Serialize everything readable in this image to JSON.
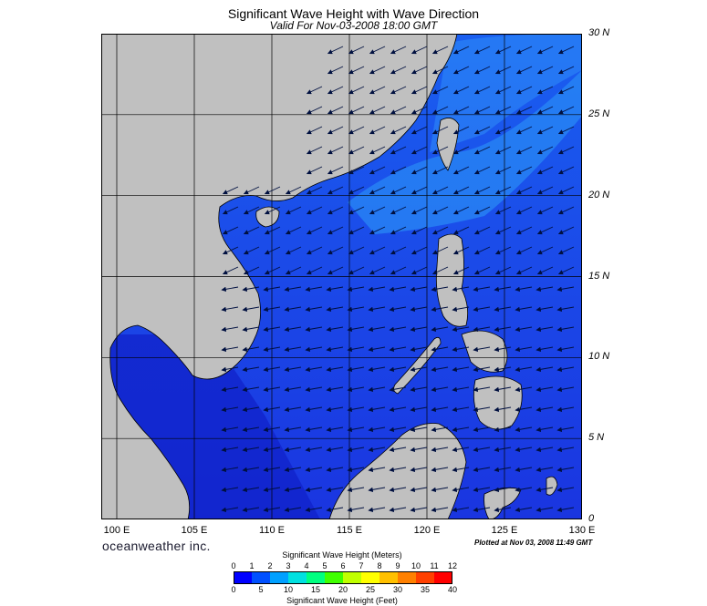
{
  "header": {
    "title": "Significant Wave Height with Wave Direction",
    "subtitle": "Valid For Nov-03-2008 18:00 GMT"
  },
  "map": {
    "lat_labels": [
      "30 N",
      "25 N",
      "20 N",
      "15 N",
      "10 N",
      "5 N",
      "0"
    ],
    "lon_labels": [
      "100 E",
      "105 E",
      "110 E",
      "115 E",
      "120 E",
      "125 E",
      "130 E"
    ],
    "extent": {
      "lon_min": 99,
      "lon_max": 130,
      "lat_min": 0,
      "lat_max": 30
    },
    "land_color": "#c0c0c0",
    "sea_color": "#1a4fe8",
    "arrow_direction": "toward southwest"
  },
  "footer": {
    "brand": "oceanweather inc.",
    "plotted": "Plotted at Nov 03, 2008 11:49 GMT"
  },
  "legend": {
    "meters_title": "Significant Wave Height (Meters)",
    "feet_title": "Significant Wave Height (Feet)",
    "meters_ticks": [
      "0",
      "1",
      "2",
      "3",
      "4",
      "5",
      "6",
      "7",
      "8",
      "9",
      "10",
      "11",
      "12"
    ],
    "feet_ticks": [
      "0",
      "5",
      "10",
      "15",
      "20",
      "25",
      "30",
      "35",
      "40"
    ],
    "colors": [
      "#0000ff",
      "#0050ff",
      "#00a0ff",
      "#00e0e0",
      "#00ff80",
      "#40ff00",
      "#c0ff00",
      "#ffff00",
      "#ffc000",
      "#ff8000",
      "#ff4000",
      "#ff0000"
    ]
  }
}
